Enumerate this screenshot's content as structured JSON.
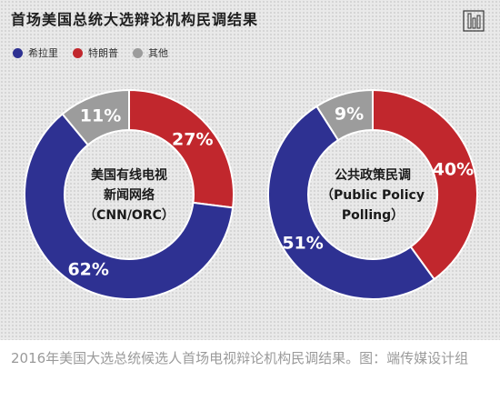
{
  "title": "首场美国总统大选辩论机构民调结果",
  "legend": [
    {
      "label": "希拉里",
      "color": "#2e3192"
    },
    {
      "label": "特朗普",
      "color": "#c1272d"
    },
    {
      "label": "其他",
      "color": "#9c9c9c"
    }
  ],
  "chart_data": [
    {
      "type": "pie",
      "donut": true,
      "center_label": [
        "美国有线电视",
        "新闻网络",
        "（CNN/ORC）"
      ],
      "slices": [
        {
          "name": "希拉里",
          "value": 62,
          "label": "62%",
          "color": "#2e3192"
        },
        {
          "name": "特朗普",
          "value": 27,
          "label": "27%",
          "color": "#c1272d"
        },
        {
          "name": "其他",
          "value": 11,
          "label": "11%",
          "color": "#9c9c9c"
        }
      ]
    },
    {
      "type": "pie",
      "donut": true,
      "center_label": [
        "公共政策民调",
        "（Public Policy",
        "Polling）"
      ],
      "slices": [
        {
          "name": "希拉里",
          "value": 51,
          "label": "51%",
          "color": "#2e3192"
        },
        {
          "name": "特朗普",
          "value": 40,
          "label": "40%",
          "color": "#c1272d"
        },
        {
          "name": "其他",
          "value": 9,
          "label": "9%",
          "color": "#9c9c9c"
        }
      ]
    }
  ],
  "caption": "2016年美国大选总统候选人首场电视辩论机构民调结果。图：端传媒设计组"
}
